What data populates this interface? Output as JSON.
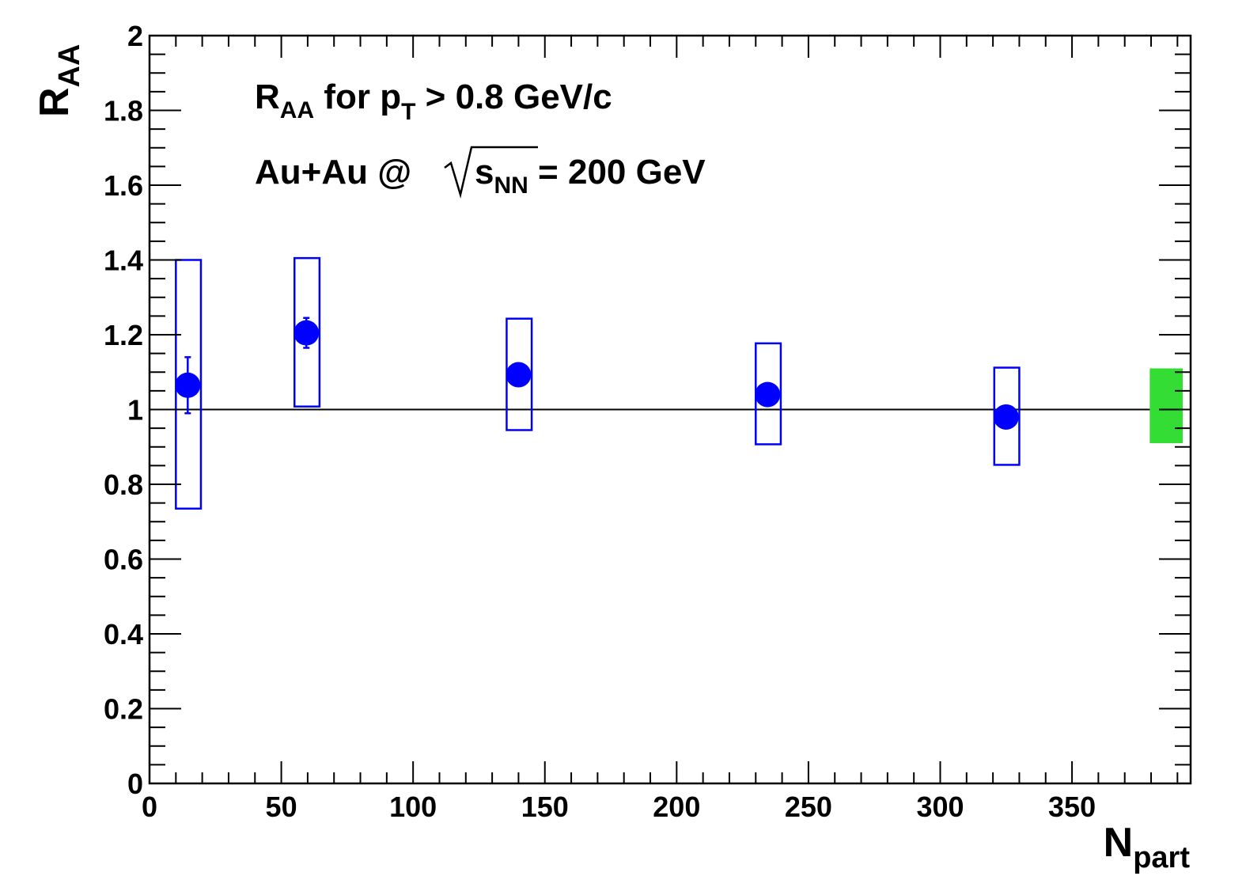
{
  "chart_data": {
    "type": "scatter",
    "xlabel": {
      "main": "N",
      "sub": "part"
    },
    "ylabel": {
      "main": "R",
      "sub": "AA"
    },
    "xlim": [
      0,
      395
    ],
    "ylim": [
      0,
      2
    ],
    "x_ticks": [
      "0",
      "50",
      "100",
      "150",
      "200",
      "250",
      "300",
      "350"
    ],
    "y_ticks": [
      "0",
      "0.2",
      "0.4",
      "0.6",
      "0.8",
      "1",
      "1.2",
      "1.4",
      "1.6",
      "1.8",
      "2"
    ],
    "reference_line": 1,
    "annotations": {
      "line1": {
        "r": "R",
        "aa": "AA",
        "for_pt": " for p",
        "t": "T",
        "rest": " > 0.8 GeV/c"
      },
      "line2": {
        "auau": "Au+Au @",
        "s": "s",
        "nn": "NN",
        "rest": " = 200 GeV"
      }
    },
    "points": [
      {
        "x": 14.5,
        "y": 1.065,
        "stat_err": 0.075,
        "sys_low": 0.735,
        "sys_high": 1.4,
        "sys_x": [
          10,
          19.5
        ]
      },
      {
        "x": 59.5,
        "y": 1.205,
        "stat_err": 0.04,
        "sys_low": 1.008,
        "sys_high": 1.405,
        "sys_x": [
          55,
          64.5
        ]
      },
      {
        "x": 140,
        "y": 1.093,
        "stat_err": 0.012,
        "sys_low": 0.945,
        "sys_high": 1.243,
        "sys_x": [
          135.5,
          145
        ]
      },
      {
        "x": 234.5,
        "y": 1.04,
        "stat_err": 0.012,
        "sys_low": 0.907,
        "sys_high": 1.177,
        "sys_x": [
          230,
          239.5
        ]
      },
      {
        "x": 325,
        "y": 0.98,
        "stat_err": 0.012,
        "sys_low": 0.852,
        "sys_high": 1.112,
        "sys_x": [
          320.5,
          330
        ]
      }
    ],
    "normalization_box": {
      "x": [
        379.5,
        392
      ],
      "y": [
        0.91,
        1.11
      ]
    },
    "colors": {
      "points": "#0000ff",
      "sys_box": "#0000ff",
      "norm_box": "#33dd33",
      "reference": "#000000",
      "frame": "#000000"
    }
  }
}
